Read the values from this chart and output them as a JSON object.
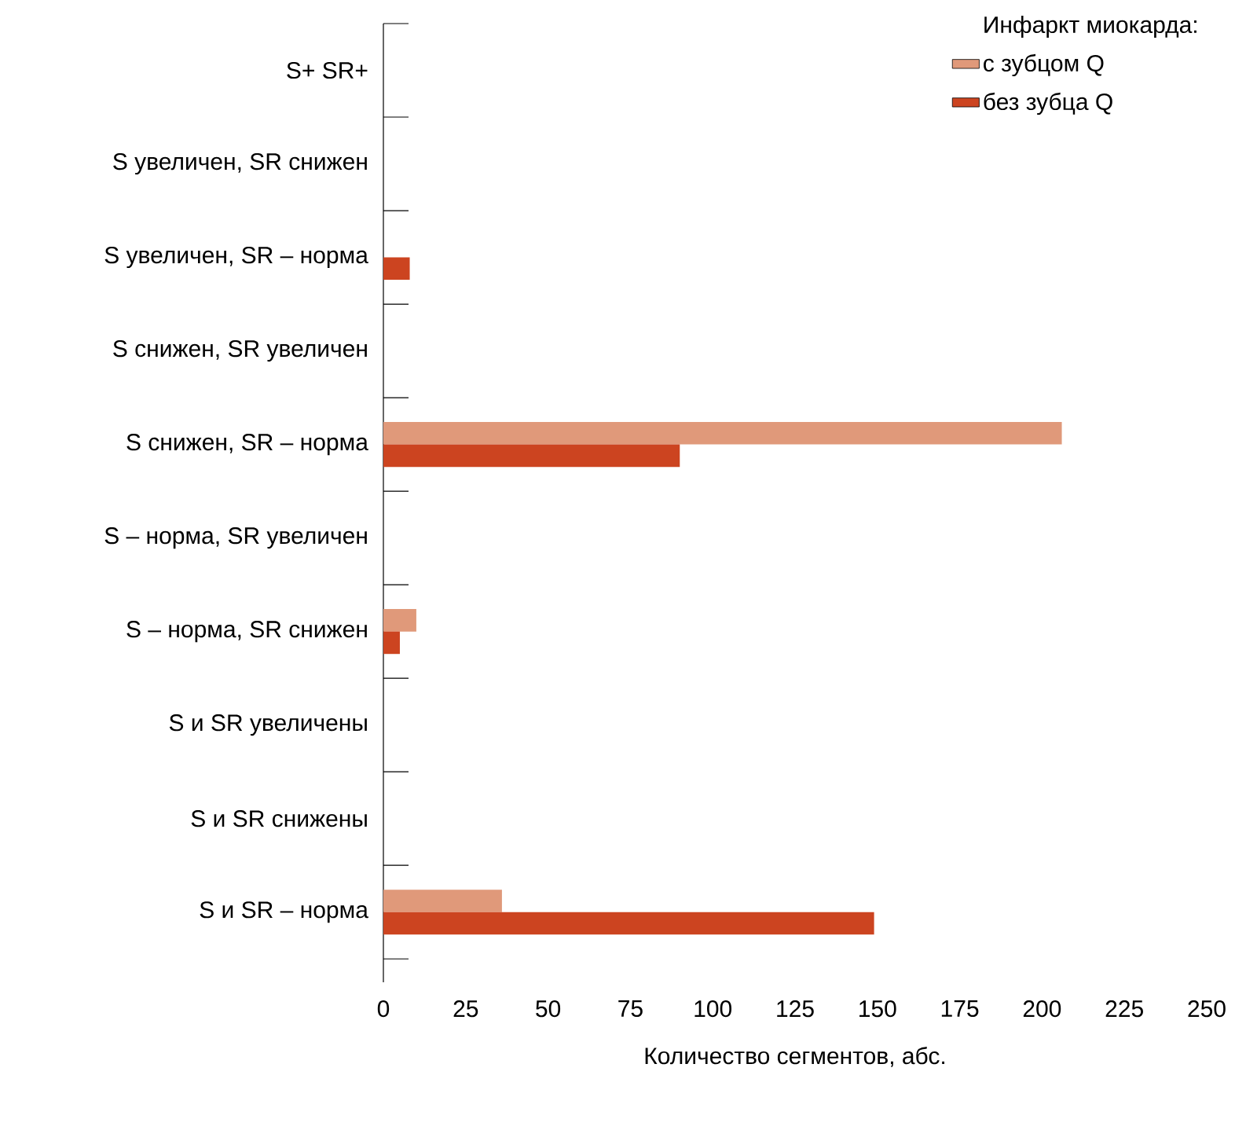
{
  "chart_data": {
    "type": "bar",
    "orientation": "horizontal",
    "xlabel": "Количество сегментов, абс.",
    "legend_title": "Инфаркт миокарда:",
    "legend": "top right",
    "grid": false,
    "categories": [
      "S+ SR+",
      "S увеличен, SR снижен",
      "S увеличен, SR – норма",
      "S снижен, SR увеличен",
      "S снижен, SR – норма",
      "S – норма, SR увеличен",
      "S – норма, SR снижен",
      "S и SR увеличены",
      "S и SR снижены",
      "S и SR – норма"
    ],
    "series": [
      {
        "name": "с зубцом Q",
        "color": "#e0997a",
        "values": [
          0,
          0,
          0,
          0,
          206,
          0,
          10,
          0,
          0,
          36
        ]
      },
      {
        "name": "без зубца Q",
        "color": "#cc4420",
        "values": [
          0,
          0,
          8,
          0,
          90,
          0,
          5,
          0,
          0,
          149
        ]
      }
    ],
    "xlim": [
      0,
      250
    ],
    "xticks": [
      0,
      25,
      50,
      75,
      100,
      125,
      150,
      175,
      200,
      225,
      250
    ]
  }
}
